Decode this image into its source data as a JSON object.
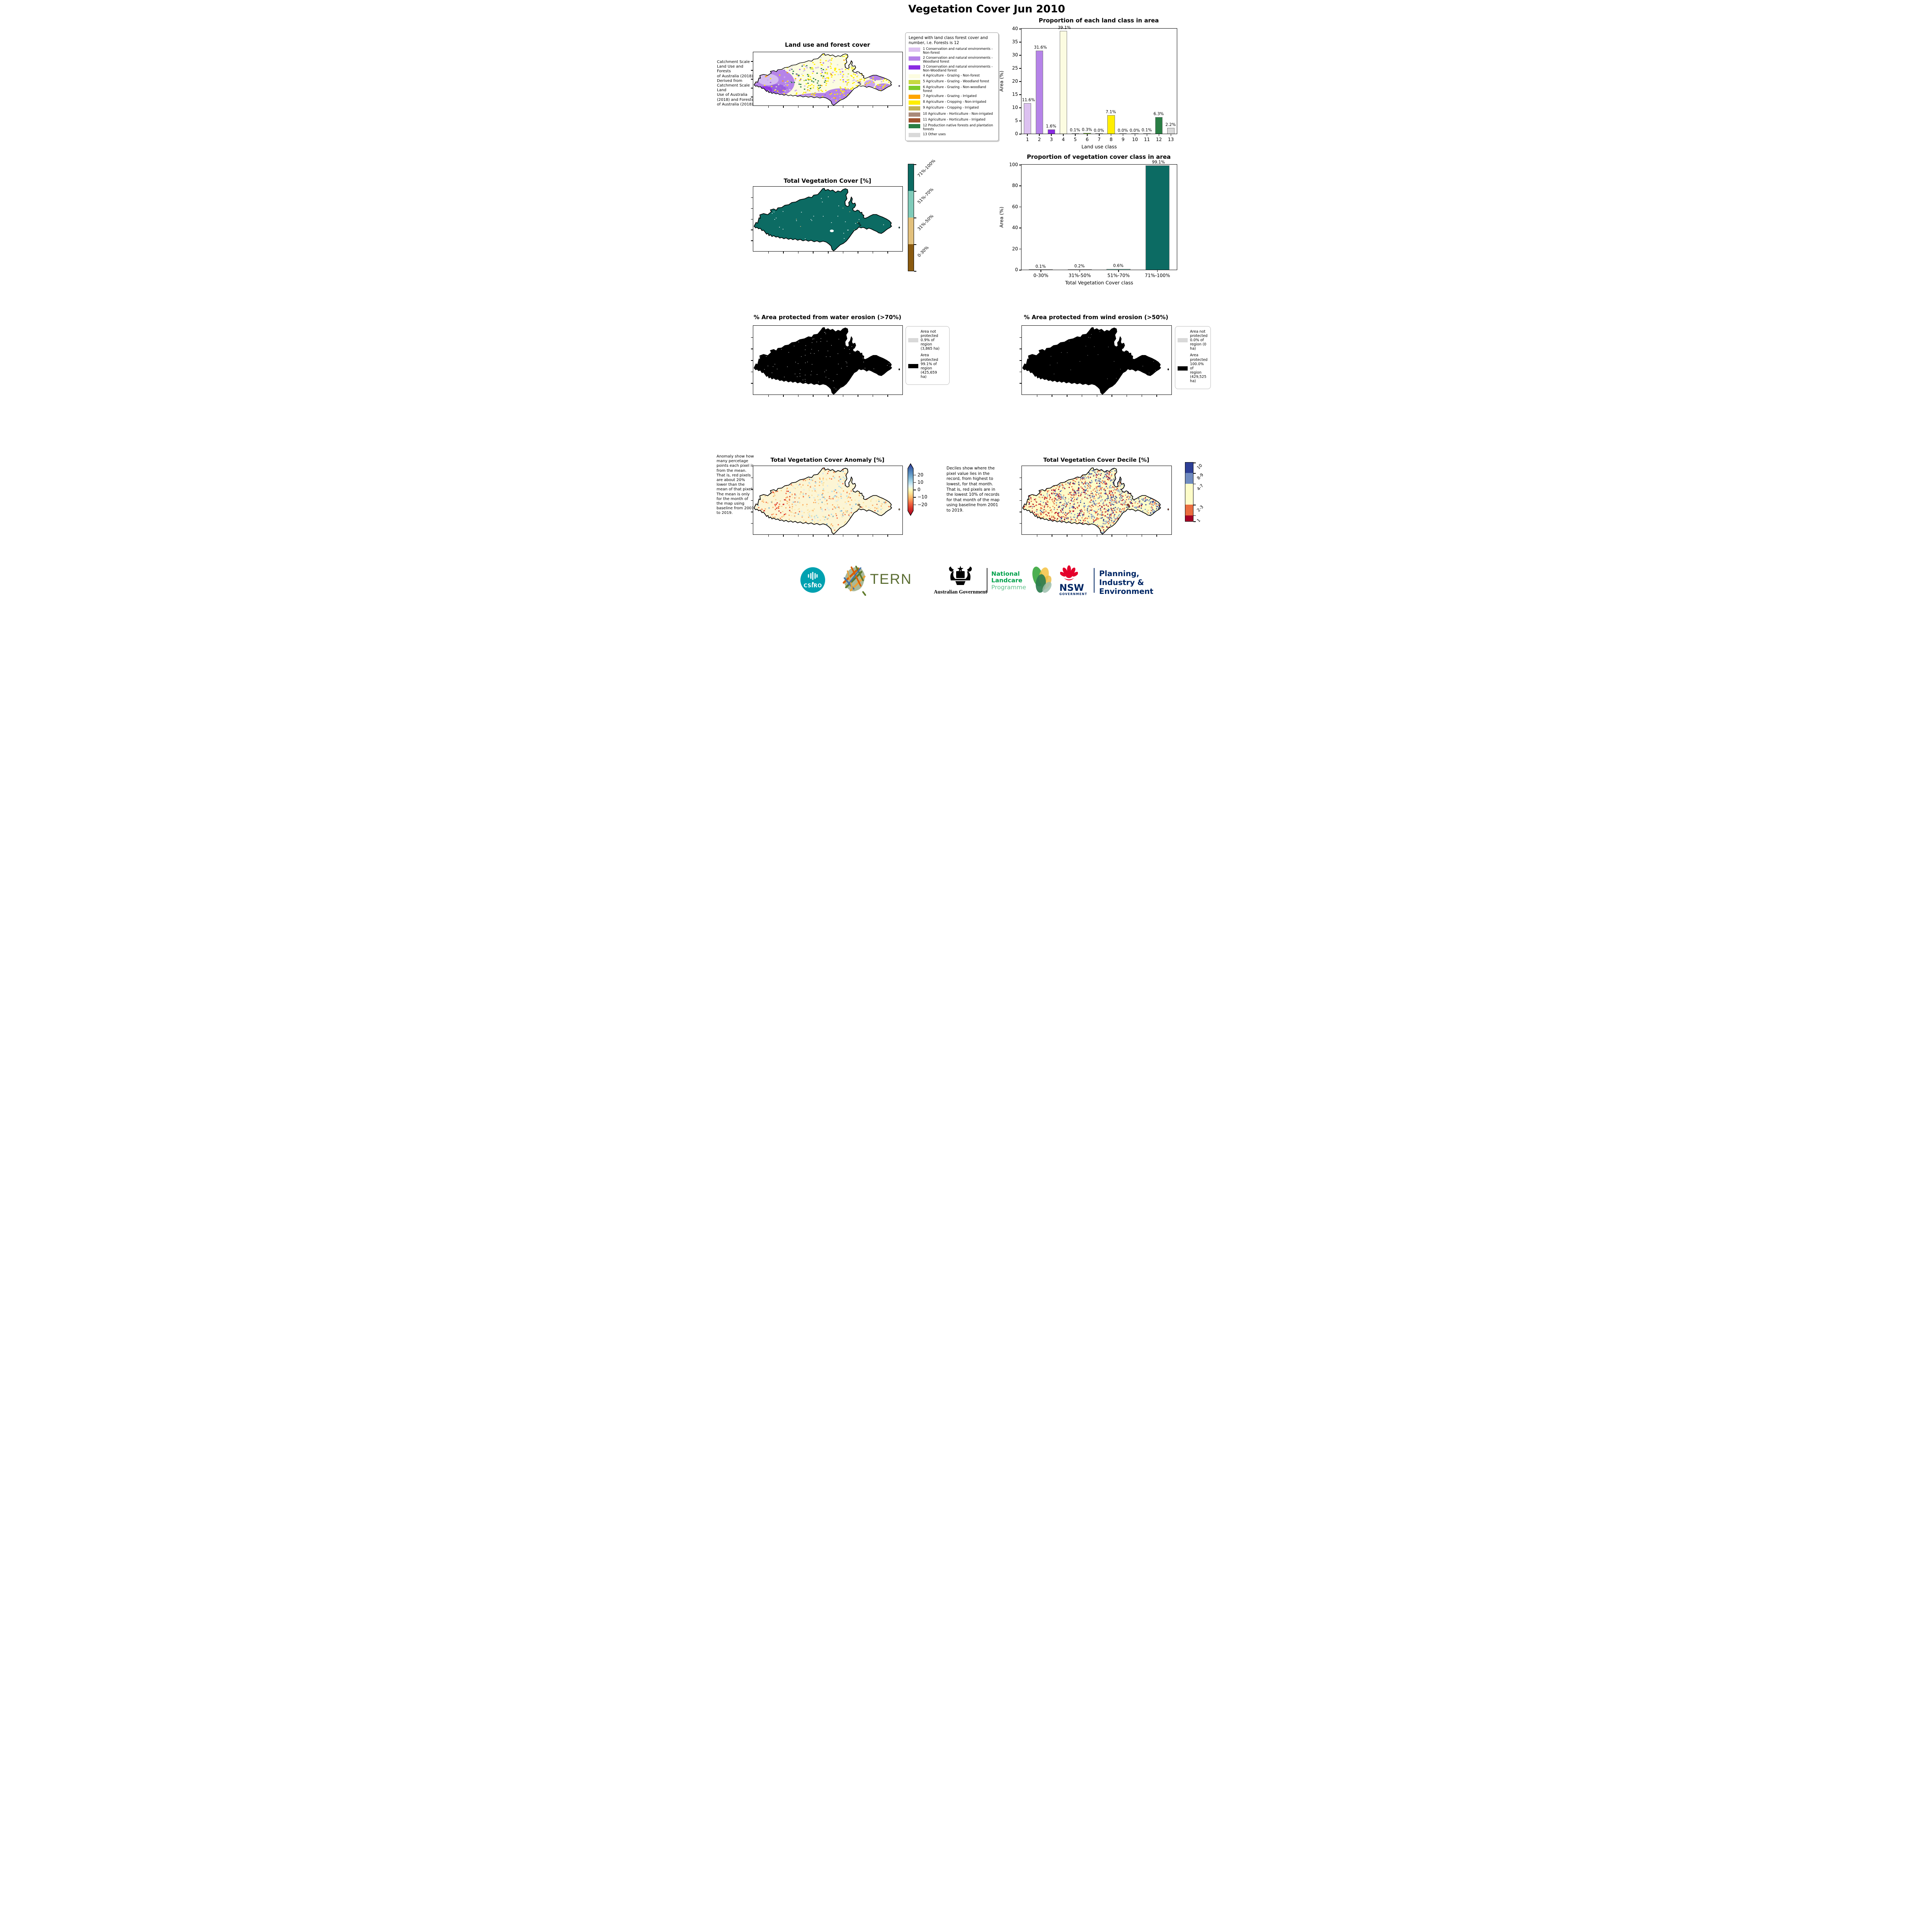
{
  "page_title": "Vegetation Cover Jun 2010",
  "land_use": {
    "map_title": "Land use and forest cover",
    "side_note": " Catchment Scale\nLand Use and Forests\nof Australia (2018)\nDerived from\nCatchment Scale Land\nUse of Australia\n(2018) and Forests\nof Australia (2018)",
    "legend_title": "Legend with land class forest cover and number, i.e. Forests is 12",
    "classes": [
      {
        "num": 1,
        "label": "1 Conservation and natural environments - Non-forest",
        "color": "#dcc1f0"
      },
      {
        "num": 2,
        "label": "2 Conservation and natural environments - Woodland forest",
        "color": "#b583e8"
      },
      {
        "num": 3,
        "label": "3 Conservation and natural environments - Non-Woodland forest",
        "color": "#8a2be2"
      },
      {
        "num": 4,
        "label": "4 Agriculture - Grazing - Non-forest",
        "color": "#fcfce1"
      },
      {
        "num": 5,
        "label": "5 Agriculture - Grazing - Woodland forest",
        "color": "#c6d940"
      },
      {
        "num": 6,
        "label": "6 Agriculture - Grazing - Non-woodland forest",
        "color": "#7ccb2a"
      },
      {
        "num": 7,
        "label": "7 Agriculture - Grazing - Irrigated",
        "color": "#ffa500"
      },
      {
        "num": 8,
        "label": "8 Agriculture - Cropping - Non-irrigated",
        "color": "#ffee00"
      },
      {
        "num": 9,
        "label": "9 Agriculture - Cropping - Irrigated",
        "color": "#c3b253"
      },
      {
        "num": 10,
        "label": "10 Agriculture - Horticulture - Non-irrigated",
        "color": "#a98a7a"
      },
      {
        "num": 11,
        "label": "11 Agriculture - Horticulture - Irrigated",
        "color": "#a0522d"
      },
      {
        "num": 12,
        "label": "12 Production native forests and plantation forests",
        "color": "#2a7e45"
      },
      {
        "num": 13,
        "label": "13 Other uses",
        "color": "#d9d9d9"
      }
    ]
  },
  "chart_data": [
    {
      "type": "bar",
      "title": "Proportion of each land class in area",
      "xlabel": "Land use class",
      "ylabel": "Area (%)",
      "ylim": [
        0,
        40
      ],
      "yticks": [
        0,
        5,
        10,
        15,
        20,
        25,
        30,
        35,
        40
      ],
      "categories": [
        "1",
        "2",
        "3",
        "4",
        "5",
        "6",
        "7",
        "8",
        "9",
        "10",
        "11",
        "12",
        "13"
      ],
      "values": [
        11.6,
        31.6,
        1.6,
        39.1,
        0.1,
        0.3,
        0.0,
        7.1,
        0.0,
        0.0,
        0.1,
        6.3,
        2.2
      ],
      "value_labels": [
        "11.6%",
        "31.6%",
        "1.6%",
        "39.1%",
        "0.1%",
        "0.3%",
        "0.0%",
        "7.1%",
        "0.0%",
        "0.0%",
        "0.1%",
        "6.3%",
        "2.2%"
      ],
      "bar_colors": [
        "#dcc1f0",
        "#b583e8",
        "#8a2be2",
        "#fcfce1",
        "#c6d940",
        "#7ccb2a",
        "#ffa500",
        "#ffee00",
        "#c3b253",
        "#a98a7a",
        "#a0522d",
        "#2a7e45",
        "#d9d9d9"
      ],
      "legend_position": "none",
      "grid": false
    },
    {
      "type": "bar",
      "title": "Proportion of vegetation cover class in area",
      "xlabel": "Total Vegetation Cover class",
      "ylabel": "Area (%)",
      "ylim": [
        0,
        100
      ],
      "yticks": [
        0,
        20,
        40,
        60,
        80,
        100
      ],
      "categories": [
        "0-30%",
        "31%-50%",
        "51%-70%",
        "71%-100%"
      ],
      "values": [
        0.1,
        0.2,
        0.6,
        99.1
      ],
      "value_labels": [
        "0.1%",
        "0.2%",
        "0.6%",
        "99.1%"
      ],
      "bar_colors": [
        "#8a5a10",
        "#e2c07c",
        "#7fcbb9",
        "#0c6b63"
      ],
      "legend_position": "none",
      "grid": false
    }
  ],
  "veg_cover": {
    "map_title": "Total Vegetation Cover [%]",
    "colorbar": [
      {
        "label": "71%-100%",
        "color": "#0c6b63"
      },
      {
        "label": "51%-70%",
        "color": "#7fcbb9"
      },
      {
        "label": "31%-50%",
        "color": "#e2c07c"
      },
      {
        "label": "0-30%",
        "color": "#8a5a10"
      }
    ]
  },
  "water_erosion": {
    "title": "% Area protected from water erosion (>70%)",
    "legend": [
      {
        "color": "#d9d9d9",
        "text": "Area not\nprotected\n0.9% of\nregion\n(3,865 ha)"
      },
      {
        "color": "#000000",
        "text": "Area\nprotected\n99.1% of\nregion\n(425,659\nha)"
      }
    ]
  },
  "wind_erosion": {
    "title": "% Area protected from wind erosion (>50%)",
    "legend": [
      {
        "color": "#d9d9d9",
        "text": "Area not\nprotected\n0.0% of\nregion (0\nha)"
      },
      {
        "color": "#000000",
        "text": "Area\nprotected\n100.0% of\nregion\n(429,525\nha)"
      }
    ]
  },
  "anomaly": {
    "title": "Total Vegetation Cover Anomaly [%]",
    "note": "Anomaly show how many percetage points each pixel is from the mean. That is, red pixels are about 20% lower than the mean of that pixel. The mean is only for the month of the map using baseline from 2001 to 2019.",
    "cbar_ticks": [
      "20",
      "10",
      "0",
      "−10",
      "−20"
    ]
  },
  "decile": {
    "title": "Total Vegetation Cover Decile [%]",
    "note": "Deciles show where the pixel value lies in the record, from highest to lowest, for that month. That is, red pixels are in the lowest 10% of records for that month of the map using baseline from 2001 to 2019.",
    "colorbar": [
      {
        "label": "10",
        "color": "#2d3f96",
        "pct": 18
      },
      {
        "label": "8-9",
        "color": "#6f8bc0",
        "pct": 18
      },
      {
        "label": "4-7",
        "color": "#fdfcc8",
        "pct": 36
      },
      {
        "label": "2-3",
        "color": "#ea6d3f",
        "pct": 18
      },
      {
        "label": "1",
        "color": "#a50026",
        "pct": 10
      }
    ]
  },
  "footer": {
    "csiro_label": "CSIRO",
    "tern_label": "TERN",
    "ausgov_label": "Australian Government",
    "landcare_line1": "National",
    "landcare_line2": "Landcare",
    "landcare_line3": "Programme",
    "nsw_label": "NSW",
    "nsw_gov_label": "GOVERNMENT",
    "agency_line1": "Planning,",
    "agency_line2": "Industry &",
    "agency_line3": "Environment"
  }
}
